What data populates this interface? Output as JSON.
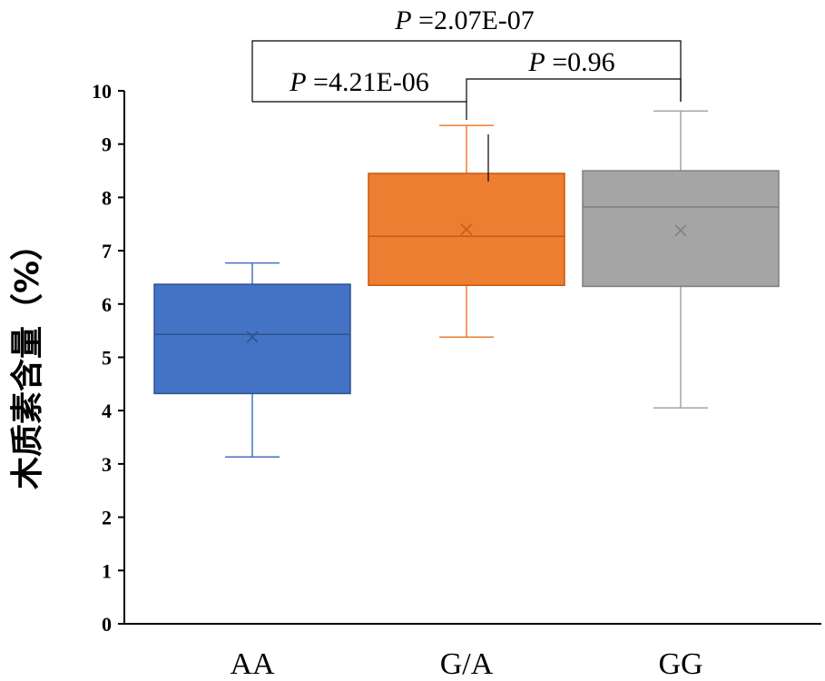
{
  "chart_data": {
    "type": "box",
    "ylabel": "木质素含量（%）",
    "ylim": [
      0,
      10
    ],
    "yticks": [
      "0",
      "1",
      "2",
      "3",
      "4",
      "5",
      "6",
      "7",
      "8",
      "9",
      "10"
    ],
    "grid": false,
    "legend": "none",
    "categories": [
      "AA",
      "G/A",
      "GG"
    ],
    "boxes": [
      {
        "category": "AA",
        "min": 3.13,
        "q1": 4.32,
        "median": 5.43,
        "q3": 6.37,
        "max": 6.77,
        "mean": 5.38,
        "color": "#4472C4",
        "outline": "#2F528F"
      },
      {
        "category": "G/A",
        "min": 5.38,
        "q1": 6.35,
        "median": 7.27,
        "q3": 8.45,
        "max": 9.35,
        "mean": 7.4,
        "color": "#ED7D31",
        "outline": "#C55A11"
      },
      {
        "category": "GG",
        "min": 4.05,
        "q1": 6.33,
        "median": 7.82,
        "q3": 8.5,
        "max": 9.62,
        "mean": 7.38,
        "color": "#A5A5A5",
        "outline": "#7F7F7F"
      }
    ],
    "annotations": [
      {
        "prefix": "P",
        "text": " =2.07E-07",
        "between": [
          "AA",
          "GG"
        ]
      },
      {
        "prefix": "P",
        "text": " =4.21E-06",
        "between": [
          "AA",
          "G/A"
        ]
      },
      {
        "prefix": "P",
        "text": " =0.96",
        "between": [
          "G/A",
          "GG"
        ]
      }
    ]
  }
}
